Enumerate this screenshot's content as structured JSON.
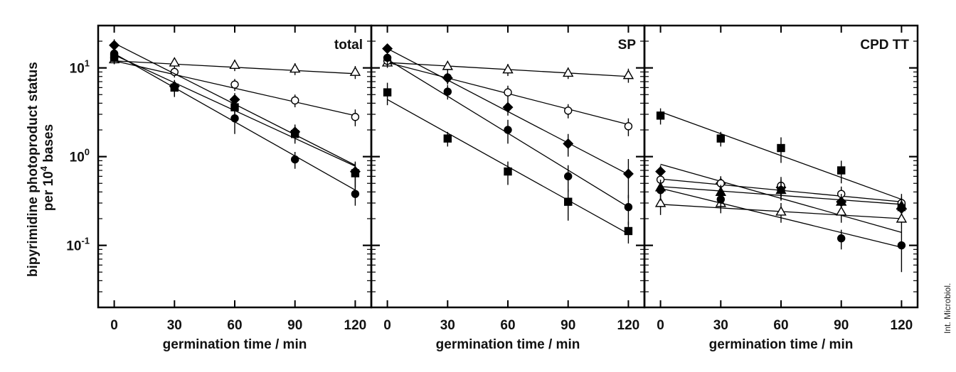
{
  "ylabel_line1": "bipyrimidine photoproduct status",
  "ylabel_line2_prefix": "per 10",
  "ylabel_line2_exp": "4",
  "ylabel_line2_suffix": " bases",
  "credit": "Int. Microbiol.",
  "chart_data": [
    {
      "type": "scatter",
      "title": "total",
      "xlabel": "germination time / min",
      "xlim": [
        -8,
        128
      ],
      "ylim": [
        0.02,
        30
      ],
      "yscale": "log",
      "x": [
        0,
        30,
        60,
        90,
        120
      ],
      "xticks": [
        "0",
        "30",
        "60",
        "90",
        "120"
      ],
      "yticks": [
        {
          "base": "10",
          "exp": "1"
        },
        {
          "base": "10",
          "exp": "0"
        },
        {
          "base": "10",
          "exp": "-1"
        }
      ],
      "series": [
        {
          "marker": "triangle-open",
          "values": [
            12.5,
            11.5,
            10.8,
            9.8,
            9.0
          ],
          "err": [
            1.5,
            1.4,
            1.6,
            1.5,
            1.5
          ],
          "fit": [
            12.0,
            8.6
          ]
        },
        {
          "marker": "circle-open",
          "values": [
            13.0,
            9.0,
            6.5,
            4.3,
            2.8
          ],
          "err": [
            1.5,
            1.2,
            1.0,
            0.7,
            0.6
          ],
          "fit": [
            12.0,
            2.9
          ]
        },
        {
          "marker": "diamond-filled",
          "values": [
            18.0,
            6.2,
            4.4,
            1.9,
            0.68
          ],
          "err": [
            3.0,
            1.0,
            0.8,
            0.4,
            0.2
          ],
          "fit": [
            19.0,
            0.8
          ]
        },
        {
          "marker": "square-filled",
          "values": [
            13.0,
            6.0,
            3.6,
            1.8,
            0.65
          ],
          "err": [
            2.0,
            1.2,
            0.8,
            0.4,
            0.2
          ],
          "fit": [
            14.0,
            0.78
          ]
        },
        {
          "marker": "circle-filled",
          "values": [
            14.5,
            6.0,
            2.7,
            0.93,
            0.38
          ],
          "err": [
            2.0,
            1.3,
            0.9,
            0.2,
            0.1
          ],
          "fit": [
            14.5,
            0.42
          ]
        }
      ]
    },
    {
      "type": "scatter",
      "title": "SP",
      "xlabel": "germination time / min",
      "xlim": [
        -8,
        128
      ],
      "ylim": [
        0.02,
        30
      ],
      "yscale": "log",
      "x": [
        0,
        30,
        60,
        90,
        120
      ],
      "xticks": [
        "0",
        "30",
        "60",
        "90",
        "120"
      ],
      "series": [
        {
          "marker": "triangle-open",
          "values": [
            11.5,
            10.5,
            9.6,
            8.8,
            8.3
          ],
          "err": [
            1.5,
            1.5,
            1.5,
            1.3,
            1.5
          ],
          "fit": [
            11.5,
            8.0
          ]
        },
        {
          "marker": "circle-open",
          "values": [
            12.0,
            7.8,
            5.3,
            3.3,
            2.2
          ],
          "err": [
            1.5,
            1.2,
            1.0,
            0.6,
            0.5
          ],
          "fit": [
            11.5,
            2.3
          ]
        },
        {
          "marker": "diamond-filled",
          "values": [
            16.5,
            7.7,
            3.6,
            1.4,
            0.64
          ],
          "err": [
            2.0,
            1.2,
            0.7,
            0.4,
            0.3
          ],
          "fit": [
            16.5,
            0.63
          ]
        },
        {
          "marker": "circle-filled",
          "values": [
            13.0,
            5.4,
            2.0,
            0.6,
            0.27
          ],
          "err": [
            2.0,
            1.0,
            0.6,
            0.2,
            0.1
          ],
          "fit": [
            12.5,
            0.27
          ]
        },
        {
          "marker": "square-filled",
          "values": [
            5.3,
            1.6,
            0.68,
            0.31,
            0.145
          ],
          "err": [
            1.5,
            0.3,
            0.2,
            0.12,
            0.04
          ],
          "fit": [
            4.4,
            0.135
          ]
        }
      ]
    },
    {
      "type": "scatter",
      "title": "CPD TT",
      "xlabel": "germination time / min",
      "xlim": [
        -8,
        128
      ],
      "ylim": [
        0.02,
        30
      ],
      "yscale": "log",
      "x": [
        0,
        30,
        60,
        90,
        120
      ],
      "xticks": [
        "0",
        "30",
        "60",
        "90",
        "120"
      ],
      "series": [
        {
          "marker": "square-filled",
          "values": [
            2.9,
            1.6,
            1.25,
            0.7,
            0.27
          ],
          "err": [
            0.6,
            0.3,
            0.4,
            0.2,
            0.08
          ],
          "fit": [
            3.2,
            0.33
          ]
        },
        {
          "marker": "diamond-filled",
          "values": [
            0.68,
            0.5,
            0.45,
            0.31,
            0.26
          ],
          "err": [
            0.12,
            0.1,
            0.1,
            0.07,
            0.06
          ],
          "fit": [
            0.82,
            0.14
          ]
        },
        {
          "marker": "circle-open",
          "values": [
            0.55,
            0.5,
            0.47,
            0.38,
            0.3
          ],
          "err": [
            0.12,
            0.1,
            0.12,
            0.08,
            0.08
          ],
          "fit": [
            0.56,
            0.31
          ]
        },
        {
          "marker": "triangle-filled",
          "values": [
            0.45,
            0.4,
            0.42,
            0.31,
            0.28
          ],
          "err": [
            0.1,
            0.08,
            0.1,
            0.07,
            0.06
          ],
          "fit": [
            0.46,
            0.29
          ]
        },
        {
          "marker": "triangle-open",
          "values": [
            0.3,
            0.3,
            0.24,
            0.24,
            0.2
          ],
          "err": [
            0.08,
            0.07,
            0.06,
            0.06,
            0.05
          ],
          "fit": [
            0.29,
            0.2
          ]
        },
        {
          "marker": "circle-filled",
          "values": [
            0.42,
            0.33,
            0.42,
            0.12,
            0.1
          ],
          "err": [
            0.1,
            0.08,
            0.1,
            0.03,
            0.05
          ],
          "fit": [
            0.44,
            0.095
          ]
        }
      ]
    }
  ]
}
